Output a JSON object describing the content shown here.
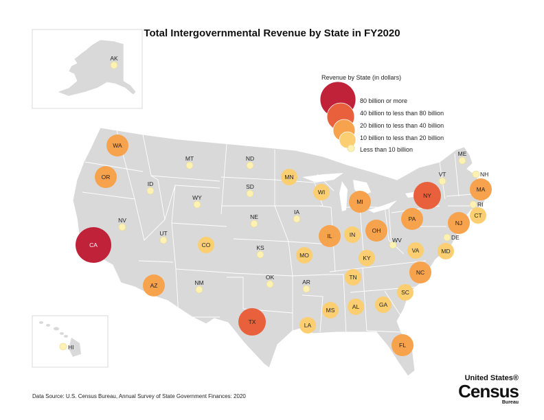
{
  "title": "Total Intergovernmental Revenue by State in FY2020",
  "legend": {
    "title": "Revenue by State (in dollars)",
    "classes": [
      {
        "label": "80 billion or more",
        "color": "#c0223a"
      },
      {
        "label": "40 billion to less than 80 billion",
        "color": "#e8603c"
      },
      {
        "label": "20 billion to less than 40 billion",
        "color": "#f7a24c"
      },
      {
        "label": "10 billion to less than 20 billion",
        "color": "#fbce72"
      },
      {
        "label": "Less than 10 billion",
        "color": "#fdf1b3"
      }
    ]
  },
  "states": [
    {
      "abbr": "AK",
      "class": 4
    },
    {
      "abbr": "HI",
      "class": 4
    },
    {
      "abbr": "WA",
      "class": 2
    },
    {
      "abbr": "OR",
      "class": 2
    },
    {
      "abbr": "CA",
      "class": 0
    },
    {
      "abbr": "ID",
      "class": 4
    },
    {
      "abbr": "NV",
      "class": 4
    },
    {
      "abbr": "UT",
      "class": 4
    },
    {
      "abbr": "AZ",
      "class": 2
    },
    {
      "abbr": "MT",
      "class": 4
    },
    {
      "abbr": "WY",
      "class": 4
    },
    {
      "abbr": "CO",
      "class": 3
    },
    {
      "abbr": "NM",
      "class": 4
    },
    {
      "abbr": "ND",
      "class": 4
    },
    {
      "abbr": "SD",
      "class": 4
    },
    {
      "abbr": "NE",
      "class": 4
    },
    {
      "abbr": "KS",
      "class": 4
    },
    {
      "abbr": "OK",
      "class": 4
    },
    {
      "abbr": "TX",
      "class": 1
    },
    {
      "abbr": "MN",
      "class": 3
    },
    {
      "abbr": "IA",
      "class": 4
    },
    {
      "abbr": "MO",
      "class": 3
    },
    {
      "abbr": "AR",
      "class": 4
    },
    {
      "abbr": "LA",
      "class": 3
    },
    {
      "abbr": "WI",
      "class": 3
    },
    {
      "abbr": "IL",
      "class": 2
    },
    {
      "abbr": "MI",
      "class": 2
    },
    {
      "abbr": "IN",
      "class": 3
    },
    {
      "abbr": "OH",
      "class": 2
    },
    {
      "abbr": "KY",
      "class": 3
    },
    {
      "abbr": "TN",
      "class": 3
    },
    {
      "abbr": "MS",
      "class": 3
    },
    {
      "abbr": "AL",
      "class": 3
    },
    {
      "abbr": "GA",
      "class": 3
    },
    {
      "abbr": "FL",
      "class": 2
    },
    {
      "abbr": "SC",
      "class": 3
    },
    {
      "abbr": "NC",
      "class": 2
    },
    {
      "abbr": "VA",
      "class": 3
    },
    {
      "abbr": "WV",
      "class": 4
    },
    {
      "abbr": "PA",
      "class": 2
    },
    {
      "abbr": "NY",
      "class": 1
    },
    {
      "abbr": "VT",
      "class": 4
    },
    {
      "abbr": "NH",
      "class": 4
    },
    {
      "abbr": "ME",
      "class": 4
    },
    {
      "abbr": "MA",
      "class": 2
    },
    {
      "abbr": "RI",
      "class": 4
    },
    {
      "abbr": "CT",
      "class": 3
    },
    {
      "abbr": "NJ",
      "class": 2
    },
    {
      "abbr": "DE",
      "class": 4
    },
    {
      "abbr": "MD",
      "class": 3
    }
  ],
  "source": "Data Source: U.S. Census Bureau, Annual Survey of State Government Finances: 2020",
  "logo": {
    "line1": "United States®",
    "line2": "Census",
    "line3": "Bureau"
  }
}
